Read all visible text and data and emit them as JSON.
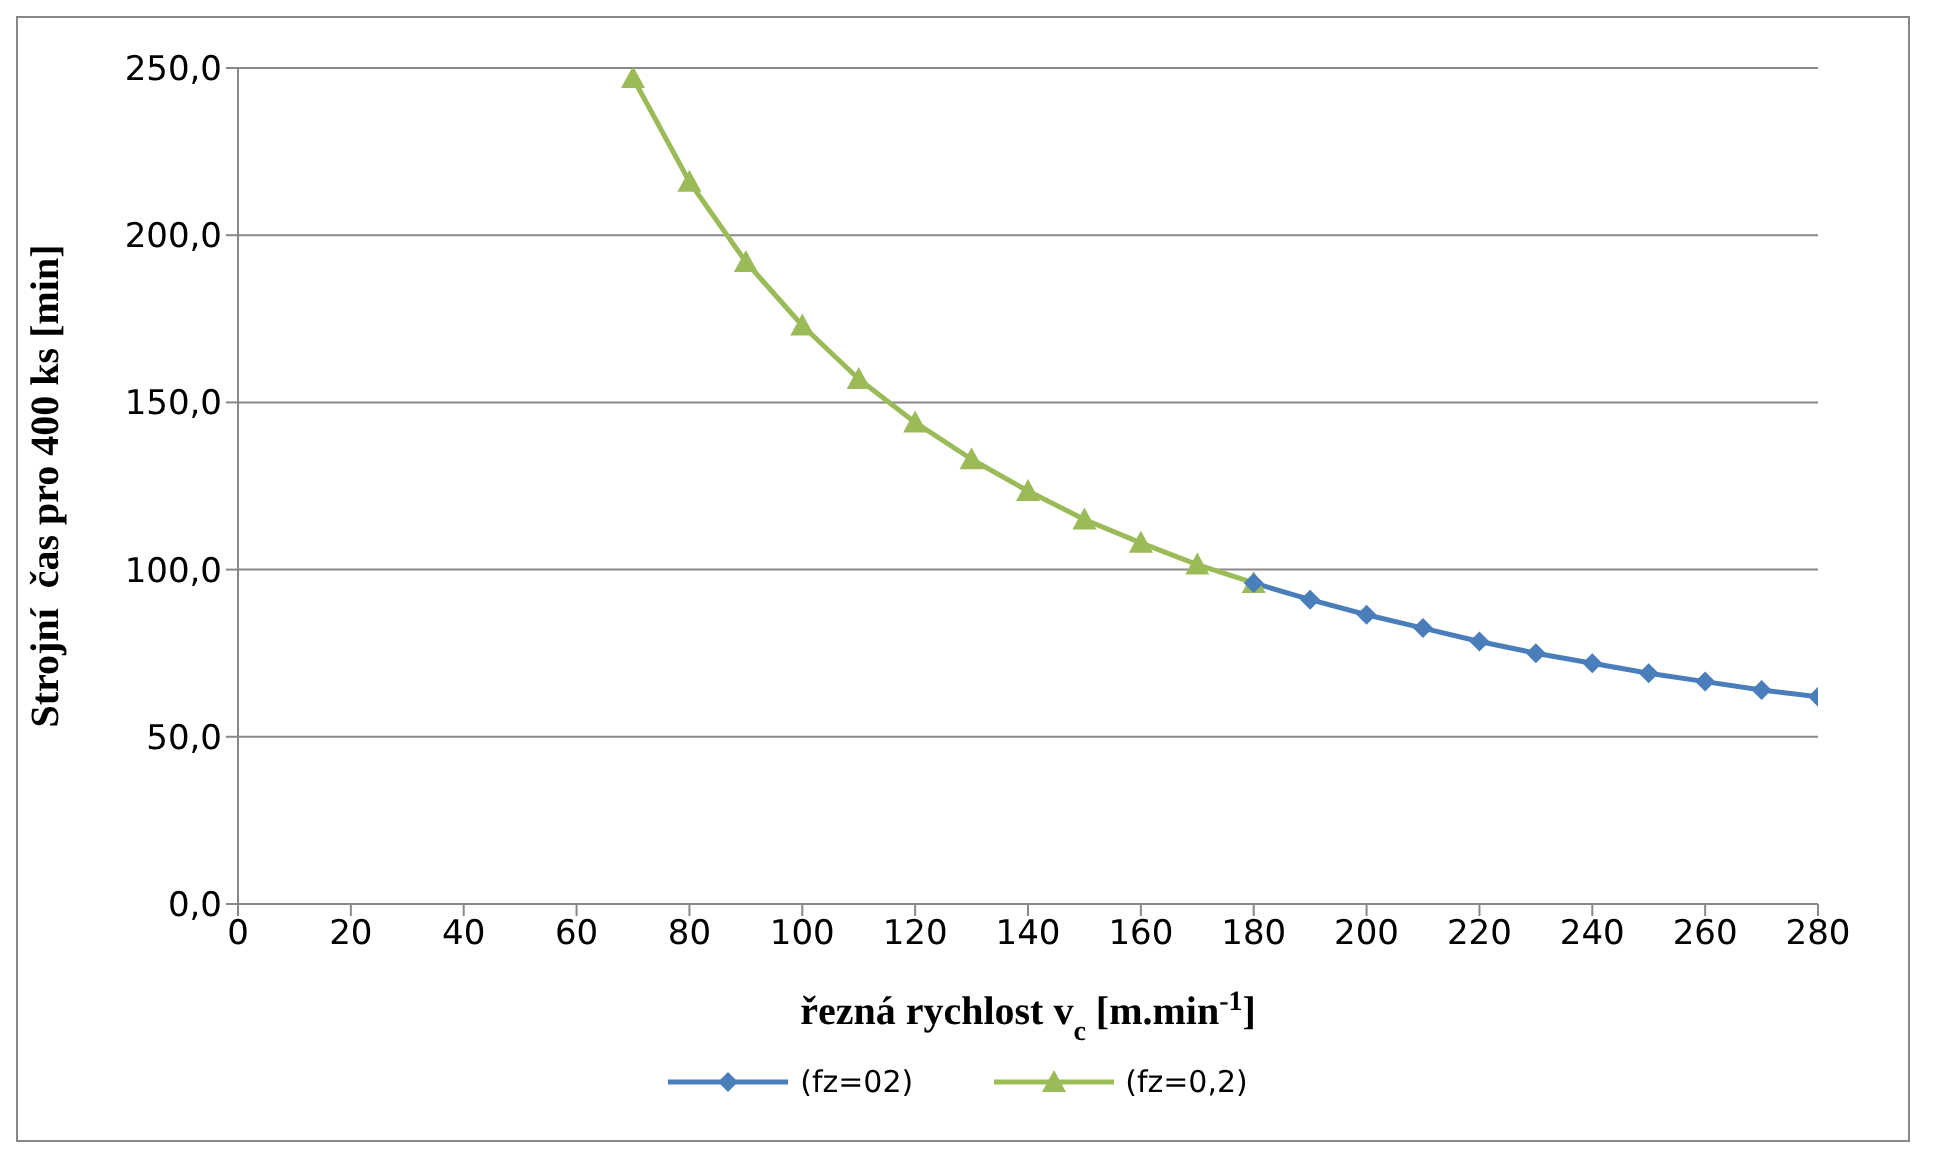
{
  "chart_data": {
    "type": "line",
    "xlabel": "řezná rychlost v$_{c}$ [m.min$^{-1}$]",
    "ylabel": "Strojní  čas pro 400 ks [min]",
    "xlim": [
      0,
      280
    ],
    "xticks": [
      0,
      20,
      40,
      60,
      80,
      100,
      120,
      140,
      160,
      180,
      200,
      220,
      240,
      260,
      280
    ],
    "ylim": [
      0,
      250
    ],
    "yticks": [
      {
        "value": 0,
        "label": "0,0"
      },
      {
        "value": 50,
        "label": "50,0"
      },
      {
        "value": 100,
        "label": "100,0"
      },
      {
        "value": 150,
        "label": "150,0"
      },
      {
        "value": 200,
        "label": "200,0"
      },
      {
        "value": 250,
        "label": "250,0"
      }
    ],
    "grid": "y",
    "legend": "bottom",
    "series": [
      {
        "name": "(fz=02)",
        "color": "#4a7ebb",
        "marker": "diamond",
        "x": [
          180,
          190,
          200,
          210,
          220,
          230,
          240,
          250,
          260,
          270,
          280
        ],
        "values": [
          96,
          91,
          86.5,
          82.5,
          78.5,
          75,
          72,
          69,
          66.5,
          64,
          62
        ]
      },
      {
        "name": "(fz=0,2)",
        "color": "#9bbb59",
        "marker": "triangle",
        "x": [
          70,
          80,
          90,
          100,
          110,
          120,
          130,
          140,
          150,
          160,
          170,
          180
        ],
        "values": [
          247,
          216,
          192,
          173,
          157,
          144,
          133,
          123.5,
          115,
          108,
          101.5,
          96
        ]
      }
    ]
  }
}
